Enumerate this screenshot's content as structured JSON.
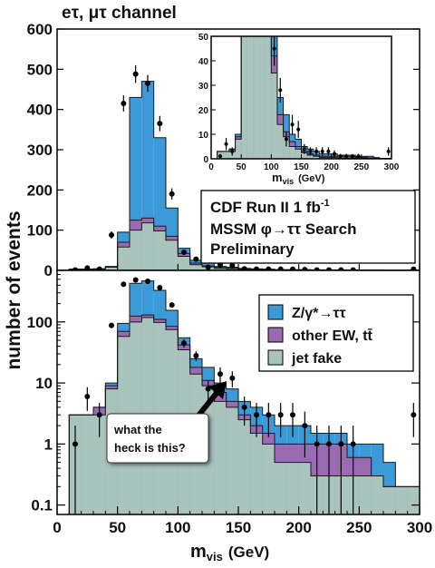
{
  "title": "eτ, μτ channel",
  "colors": {
    "ztautau": "#3d9ad8",
    "ew": "#9a6ab2",
    "fake": "#a9c4bd"
  },
  "chart_data": [
    {
      "type": "bar",
      "name": "main-linear",
      "ylabel_main": "number of events",
      "xlabel_main": "m",
      "xlabel_sub": "vis",
      "xlabel_unit": "(GeV)",
      "xlim": [
        0,
        300
      ],
      "ylim": [
        0,
        600
      ],
      "ylog": false,
      "grid": false,
      "x_ticks": [
        0,
        50,
        100,
        150,
        200,
        250,
        300
      ],
      "y_ticks": [
        0,
        100,
        200,
        300,
        400,
        500,
        600
      ],
      "bin_edges": [
        10,
        20,
        30,
        40,
        50,
        60,
        70,
        80,
        90,
        100,
        110,
        120,
        130,
        140,
        150,
        160,
        170,
        180,
        190,
        200,
        210,
        220,
        230,
        240,
        250,
        260,
        270,
        280,
        290,
        300
      ],
      "stack": [
        {
          "component": "ztautau",
          "label": "Z/γ*→ττ",
          "top": [
            3,
            3,
            4,
            10,
            95,
            430,
            470,
            330,
            155,
            55,
            25,
            18,
            10,
            8,
            5,
            4,
            3,
            2,
            2,
            2,
            1.5,
            1.5,
            1.5,
            1,
            1,
            1,
            0.5,
            0.2,
            0.2
          ]
        },
        {
          "component": "ew",
          "label": "other EW, tt̄",
          "top": [
            3,
            3,
            4,
            9,
            70,
            125,
            130,
            110,
            85,
            42,
            18,
            11,
            7,
            5,
            3,
            2,
            1.5,
            1,
            1,
            1,
            1,
            1,
            1,
            0.6,
            0.6,
            0.3,
            0.2,
            0.2,
            0.2
          ]
        },
        {
          "component": "fake",
          "label": "jet fake",
          "top": [
            3,
            3,
            3,
            8,
            58,
            100,
            118,
            98,
            75,
            35,
            14,
            9,
            5,
            4,
            2.5,
            1.5,
            1,
            0.5,
            0.5,
            0.5,
            0.3,
            0.3,
            0.3,
            0.3,
            0.3,
            0.3,
            0.2,
            0.2,
            0.2
          ]
        }
      ],
      "points": [
        {
          "x": 15,
          "y": 1,
          "err": 1
        },
        {
          "x": 25,
          "y": 6,
          "err": 2.5
        },
        {
          "x": 35,
          "y": 3,
          "err": 1.7
        },
        {
          "x": 45,
          "y": 88,
          "err": 9
        },
        {
          "x": 55,
          "y": 415,
          "err": 20
        },
        {
          "x": 65,
          "y": 488,
          "err": 22
        },
        {
          "x": 75,
          "y": 465,
          "err": 21
        },
        {
          "x": 85,
          "y": 365,
          "err": 19
        },
        {
          "x": 95,
          "y": 190,
          "err": 14
        },
        {
          "x": 105,
          "y": 45,
          "err": 7
        },
        {
          "x": 115,
          "y": 28,
          "err": 5
        },
        {
          "x": 125,
          "y": 8,
          "err": 3
        },
        {
          "x": 135,
          "y": 14,
          "err": 4
        },
        {
          "x": 145,
          "y": 12,
          "err": 3.5
        },
        {
          "x": 155,
          "y": 4,
          "err": 2
        },
        {
          "x": 165,
          "y": 3,
          "err": 1.7
        },
        {
          "x": 175,
          "y": 3,
          "err": 1.7
        },
        {
          "x": 185,
          "y": 3,
          "err": 1.7
        },
        {
          "x": 195,
          "y": 3,
          "err": 1.7
        },
        {
          "x": 205,
          "y": 2,
          "err": 1.4
        },
        {
          "x": 215,
          "y": 1,
          "err": 1
        },
        {
          "x": 225,
          "y": 1,
          "err": 1
        },
        {
          "x": 235,
          "y": 1,
          "err": 1
        },
        {
          "x": 245,
          "y": 1,
          "err": 1
        },
        {
          "x": 295,
          "y": 3,
          "err": 1.7
        }
      ]
    },
    {
      "type": "bar",
      "name": "inset",
      "xlabel_main": "m",
      "xlabel_sub": "vis",
      "xlabel_unit": "(GeV)",
      "xlim": [
        0,
        300
      ],
      "ylim": [
        0,
        50
      ],
      "ylog": false,
      "x_ticks": [
        0,
        50,
        100,
        150,
        200,
        250,
        300
      ],
      "y_ticks": [
        0,
        10,
        20,
        30,
        40,
        50
      ],
      "note": "zoom of the main histogram (same data, y range 0–50)"
    },
    {
      "type": "bar",
      "name": "main-log",
      "xlim": [
        0,
        300
      ],
      "ylim": [
        0.07,
        700
      ],
      "ylog": true,
      "y_ticks": [
        0.1,
        1,
        10,
        100
      ],
      "x_ticks": [
        0,
        50,
        100,
        150,
        200,
        250,
        300
      ],
      "note": "same histogram as main-linear, plotted with a log y axis"
    }
  ],
  "annotations": {
    "cdf_box": {
      "line1": "CDF Run II  1 fb",
      "line1_sup": "-1",
      "line2": "MSSM φ→ττ Search",
      "line3": "Preliminary"
    },
    "legend": {
      "items": [
        {
          "label": "Z/γ*→ττ",
          "component": "ztautau"
        },
        {
          "label": "other EW, tt̄",
          "component": "ew"
        },
        {
          "label": "jet fake",
          "component": "fake"
        }
      ],
      "placement": "upper-right"
    },
    "callout": {
      "line1": "what the",
      "line2": "heck is this?"
    }
  }
}
